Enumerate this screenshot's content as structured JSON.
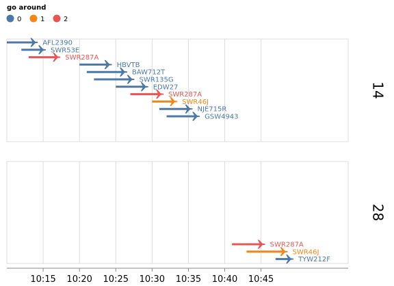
{
  "chart_data": {
    "type": "timeline",
    "legend": {
      "title": "go around",
      "entries": [
        {
          "label": "0",
          "color": "#4c78a8"
        },
        {
          "label": "1",
          "color": "#f58518"
        },
        {
          "label": "2",
          "color": "#e45756"
        }
      ],
      "placement": "top-left"
    },
    "x_axis": {
      "ticks": [
        "10:15",
        "10:20",
        "10:25",
        "10:30",
        "10:35",
        "10:40",
        "10:45"
      ],
      "tick_minutes": [
        615,
        620,
        625,
        630,
        635,
        640,
        645
      ],
      "range_minutes": [
        610,
        657
      ],
      "grid": true
    },
    "facets": [
      {
        "label": "14",
        "flights": [
          {
            "callsign": "AFL2390",
            "go_around": 0,
            "start": "10:10:00",
            "end": "10:13:48"
          },
          {
            "callsign": "SWR53E",
            "go_around": 0,
            "start": "10:12:00",
            "end": "10:14:54"
          },
          {
            "callsign": "SWR287A",
            "go_around": 2,
            "start": "10:13:00",
            "end": "10:16:54"
          },
          {
            "callsign": "HBVTB",
            "go_around": 0,
            "start": "10:20:00",
            "end": "10:24:00"
          },
          {
            "callsign": "BAW712T",
            "go_around": 0,
            "start": "10:21:00",
            "end": "10:26:06"
          },
          {
            "callsign": "SWR135G",
            "go_around": 0,
            "start": "10:22:00",
            "end": "10:27:06"
          },
          {
            "callsign": "EDW27",
            "go_around": 0,
            "start": "10:25:00",
            "end": "10:29:00"
          },
          {
            "callsign": "SWR287A",
            "go_around": 2,
            "start": "10:27:00",
            "end": "10:31:06"
          },
          {
            "callsign": "SWR46J",
            "go_around": 1,
            "start": "10:30:00",
            "end": "10:33:00"
          },
          {
            "callsign": "NJE715R",
            "go_around": 0,
            "start": "10:31:00",
            "end": "10:35:06"
          },
          {
            "callsign": "GSW4943",
            "go_around": 0,
            "start": "10:32:00",
            "end": "10:36:06"
          }
        ]
      },
      {
        "label": "28",
        "flights": [
          {
            "callsign": "SWR287A",
            "go_around": 2,
            "start": "10:41:00",
            "end": "10:45:06"
          },
          {
            "callsign": "SWR46J",
            "go_around": 1,
            "start": "10:43:00",
            "end": "10:48:12"
          },
          {
            "callsign": "TYW212F",
            "go_around": 0,
            "start": "10:47:00",
            "end": "10:49:00"
          }
        ]
      }
    ]
  }
}
